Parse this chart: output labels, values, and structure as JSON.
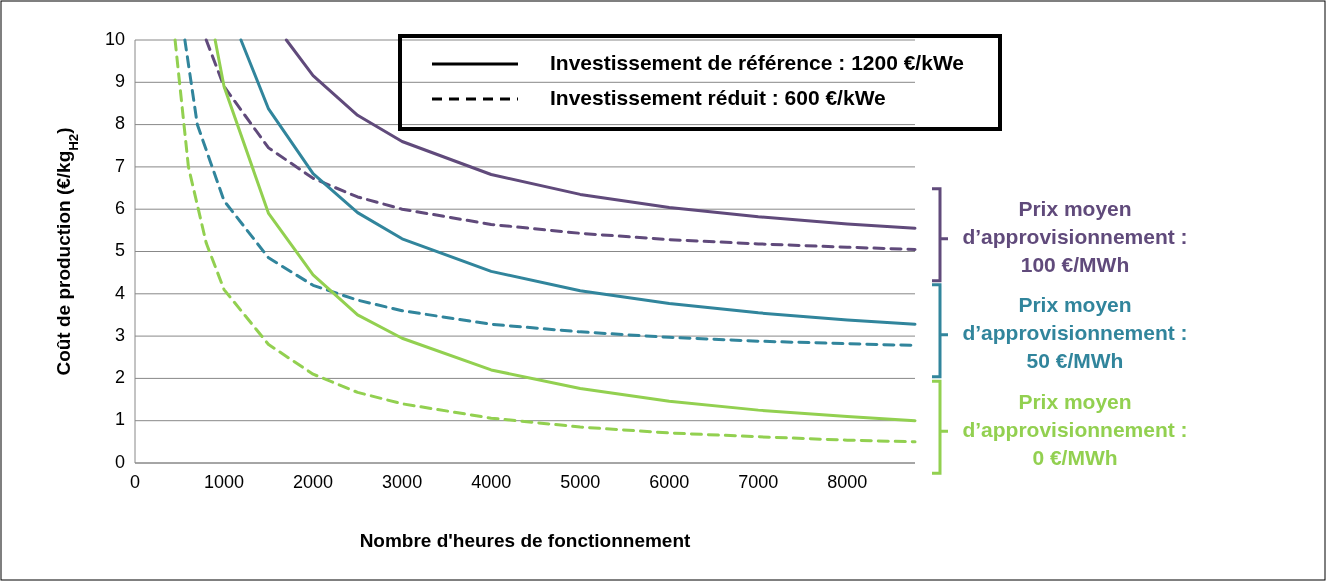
{
  "chart_data": {
    "type": "line",
    "xlabel": "Nombre d'heures de fonctionnement",
    "ylabel": "Coût de production (€/kg$_{H2}$)",
    "xlim": [
      0,
      8760
    ],
    "xticks": [
      0,
      1000,
      2000,
      3000,
      4000,
      5000,
      6000,
      7000,
      8000
    ],
    "ylim": [
      0,
      10
    ],
    "yticks": [
      0,
      1,
      2,
      3,
      4,
      5,
      6,
      7,
      8,
      9,
      10
    ],
    "grid": "y",
    "annotations": [
      "Investissement de référence : 1200 €/kWe",
      "Investissement réduit : 600 €/kWe",
      "Prix moyen d’approvisionnement : 100 €/MWh",
      "Prix moyen d’approvisionnement : 50 €/MWh",
      "Prix moyen d’approvisionnement : 0 €/MWh"
    ],
    "series": [
      {
        "color": "#604a7b",
        "line_style": "solid",
        "x": [
          1700,
          2000,
          2500,
          3000,
          4000,
          5000,
          6000,
          7000,
          8000,
          8760
        ],
        "values": [
          10,
          9.16,
          8.22,
          7.6,
          6.82,
          6.35,
          6.04,
          5.82,
          5.65,
          5.55
        ]
      },
      {
        "color": "#604a7b",
        "line_style": "dashed",
        "x": [
          800,
          1000,
          1500,
          2000,
          2500,
          3000,
          4000,
          5000,
          6000,
          7000,
          8000,
          8760
        ],
        "values": [
          10,
          8.9,
          7.45,
          6.73,
          6.29,
          6.0,
          5.64,
          5.43,
          5.28,
          5.18,
          5.1,
          5.05
        ]
      },
      {
        "color": "#31859c",
        "line_style": "solid",
        "x": [
          1190,
          1500,
          2000,
          2500,
          3000,
          4000,
          5000,
          6000,
          7000,
          8000,
          8760
        ],
        "values": [
          10,
          8.37,
          6.84,
          5.92,
          5.3,
          4.53,
          4.07,
          3.77,
          3.55,
          3.38,
          3.28
        ]
      },
      {
        "color": "#31859c",
        "line_style": "dashed",
        "x": [
          560,
          700,
          1000,
          1500,
          2000,
          2500,
          3000,
          4000,
          5000,
          6000,
          7000,
          8000,
          8760
        ],
        "values": [
          10,
          8.0,
          6.2,
          4.85,
          4.2,
          3.85,
          3.6,
          3.28,
          3.1,
          2.97,
          2.88,
          2.82,
          2.78
        ]
      },
      {
        "color": "#92d050",
        "line_style": "solid",
        "x": [
          900,
          1000,
          1500,
          2000,
          2500,
          3000,
          4000,
          5000,
          6000,
          7000,
          8000,
          8760
        ],
        "values": [
          10,
          8.9,
          5.9,
          4.45,
          3.5,
          2.95,
          2.2,
          1.76,
          1.46,
          1.25,
          1.1,
          1.0
        ]
      },
      {
        "color": "#92d050",
        "line_style": "dashed",
        "x": [
          450,
          600,
          800,
          1000,
          1500,
          2000,
          2500,
          3000,
          4000,
          5000,
          6000,
          7000,
          8000,
          8760
        ],
        "values": [
          10,
          7.0,
          5.2,
          4.1,
          2.8,
          2.1,
          1.67,
          1.4,
          1.06,
          0.85,
          0.71,
          0.62,
          0.54,
          0.5
        ]
      }
    ]
  }
}
